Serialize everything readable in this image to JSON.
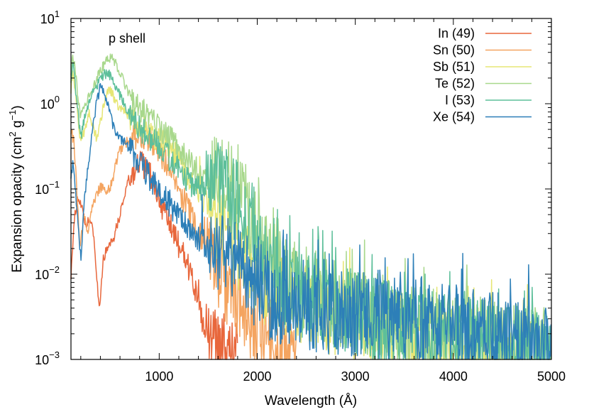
{
  "chart_data": {
    "type": "line",
    "annotation": "p shell",
    "xlabel": "Wavelength (Å)",
    "ylabel": {
      "prefix": "Expansion opacity (cm",
      "sup1": "2",
      "mid": " g",
      "sup2": "−1",
      "suffix": ")"
    },
    "xlim": [
      100,
      5000
    ],
    "ylim": [
      0.001,
      10
    ],
    "yscale": "log",
    "grid": false,
    "legend_position": "top-right",
    "x_ticks": [
      {
        "value": 1000,
        "label": "1000"
      },
      {
        "value": 2000,
        "label": "2000"
      },
      {
        "value": 3000,
        "label": "3000"
      },
      {
        "value": 4000,
        "label": "4000"
      },
      {
        "value": 5000,
        "label": "5000"
      }
    ],
    "y_ticks": [
      {
        "value": 10,
        "base": "10",
        "exp": "1"
      },
      {
        "value": 1,
        "base": "10",
        "exp": "0"
      },
      {
        "value": 0.1,
        "base": "10",
        "exp": "−1"
      },
      {
        "value": 0.01,
        "base": "10",
        "exp": "−2"
      },
      {
        "value": 0.001,
        "base": "10",
        "exp": "−3"
      }
    ],
    "series": [
      {
        "name": "In (49)",
        "color": "#e8673c",
        "points": [
          [
            100,
            0.01
          ],
          [
            130,
            0.04
          ],
          [
            170,
            0.08
          ],
          [
            210,
            0.06
          ],
          [
            250,
            0.035
          ],
          [
            290,
            0.045
          ],
          [
            330,
            0.03
          ],
          [
            360,
            0.01
          ],
          [
            390,
            0.004
          ],
          [
            430,
            0.015
          ],
          [
            480,
            0.022
          ],
          [
            540,
            0.028
          ],
          [
            600,
            0.05
          ],
          [
            650,
            0.09
          ],
          [
            700,
            0.14
          ],
          [
            760,
            0.18
          ],
          [
            820,
            0.2
          ],
          [
            880,
            0.17
          ],
          [
            940,
            0.12
          ],
          [
            1000,
            0.08
          ],
          [
            1060,
            0.05
          ],
          [
            1120,
            0.035
          ],
          [
            1180,
            0.025
          ],
          [
            1240,
            0.018
          ],
          [
            1300,
            0.012
          ],
          [
            1350,
            0.008
          ],
          [
            1400,
            0.004
          ],
          [
            1450,
            0.0025
          ],
          [
            1500,
            0.0018
          ],
          [
            1560,
            0.0014
          ],
          [
            1620,
            0.0012
          ],
          [
            1700,
            0.0011
          ],
          [
            1800,
            0.001
          ]
        ]
      },
      {
        "name": "Sn (50)",
        "color": "#f4a460",
        "points": [
          [
            100,
            0.5
          ],
          [
            130,
            0.35
          ],
          [
            160,
            0.1
          ],
          [
            190,
            0.02
          ],
          [
            230,
            0.05
          ],
          [
            270,
            0.03
          ],
          [
            310,
            0.06
          ],
          [
            350,
            0.08
          ],
          [
            390,
            0.1
          ],
          [
            430,
            0.11
          ],
          [
            470,
            0.09
          ],
          [
            520,
            0.12
          ],
          [
            560,
            0.2
          ],
          [
            600,
            0.28
          ],
          [
            650,
            0.34
          ],
          [
            700,
            0.38
          ],
          [
            760,
            0.42
          ],
          [
            820,
            0.44
          ],
          [
            880,
            0.4
          ],
          [
            940,
            0.34
          ],
          [
            1000,
            0.27
          ],
          [
            1080,
            0.2
          ],
          [
            1160,
            0.13
          ],
          [
            1240,
            0.08
          ],
          [
            1320,
            0.05
          ],
          [
            1400,
            0.032
          ],
          [
            1480,
            0.022
          ],
          [
            1560,
            0.015
          ],
          [
            1640,
            0.01
          ],
          [
            1720,
            0.007
          ],
          [
            1800,
            0.005
          ],
          [
            1900,
            0.0035
          ],
          [
            2000,
            0.0025
          ],
          [
            2100,
            0.0018
          ],
          [
            2200,
            0.0014
          ],
          [
            2300,
            0.0011
          ],
          [
            2400,
            0.001
          ]
        ]
      },
      {
        "name": "Sb (51)",
        "color": "#e6e675",
        "points": [
          [
            100,
            1.5
          ],
          [
            120,
            2.2
          ],
          [
            140,
            1.6
          ],
          [
            170,
            0.7
          ],
          [
            200,
            0.35
          ],
          [
            240,
            0.5
          ],
          [
            280,
            0.8
          ],
          [
            320,
            0.55
          ],
          [
            360,
            0.4
          ],
          [
            400,
            0.6
          ],
          [
            440,
            1.1
          ],
          [
            480,
            1.5
          ],
          [
            520,
            1.3
          ],
          [
            560,
            1.0
          ],
          [
            620,
            0.85
          ],
          [
            680,
            0.75
          ],
          [
            740,
            0.65
          ],
          [
            800,
            0.55
          ],
          [
            860,
            0.5
          ],
          [
            920,
            0.45
          ],
          [
            980,
            0.4
          ],
          [
            1060,
            0.33
          ],
          [
            1140,
            0.27
          ],
          [
            1220,
            0.2
          ],
          [
            1300,
            0.14
          ],
          [
            1380,
            0.1
          ],
          [
            1460,
            0.072
          ],
          [
            1540,
            0.052
          ],
          [
            1620,
            0.036
          ],
          [
            1700,
            0.026
          ],
          [
            1800,
            0.018
          ],
          [
            1900,
            0.013
          ],
          [
            2000,
            0.009
          ],
          [
            2200,
            0.0065
          ],
          [
            2400,
            0.005
          ],
          [
            2600,
            0.004
          ],
          [
            2800,
            0.0033
          ],
          [
            3000,
            0.0028
          ],
          [
            3200,
            0.0024
          ],
          [
            3400,
            0.0021
          ],
          [
            3600,
            0.0019
          ],
          [
            3800,
            0.0016
          ],
          [
            4000,
            0.0014
          ],
          [
            4200,
            0.0013
          ],
          [
            4400,
            0.0012
          ],
          [
            4600,
            0.0011
          ],
          [
            4800,
            0.001
          ]
        ]
      },
      {
        "name": "Te (52)",
        "color": "#a8d88c",
        "points": [
          [
            100,
            2.5
          ],
          [
            120,
            3.4
          ],
          [
            140,
            2.6
          ],
          [
            170,
            1.3
          ],
          [
            200,
            0.7
          ],
          [
            240,
            0.9
          ],
          [
            280,
            1.2
          ],
          [
            320,
            1.5
          ],
          [
            360,
            1.9
          ],
          [
            400,
            2.4
          ],
          [
            440,
            2.9
          ],
          [
            480,
            3.3
          ],
          [
            520,
            3.5
          ],
          [
            560,
            2.9
          ],
          [
            620,
            2.0
          ],
          [
            680,
            1.4
          ],
          [
            740,
            1.1
          ],
          [
            800,
            0.9
          ],
          [
            860,
            0.75
          ],
          [
            920,
            0.65
          ],
          [
            980,
            0.55
          ],
          [
            1060,
            0.45
          ],
          [
            1140,
            0.35
          ],
          [
            1220,
            0.27
          ],
          [
            1300,
            0.21
          ],
          [
            1380,
            0.17
          ],
          [
            1460,
            0.14
          ],
          [
            1540,
            0.13
          ],
          [
            1620,
            0.15
          ],
          [
            1700,
            0.13
          ],
          [
            1780,
            0.11
          ],
          [
            1860,
            0.07
          ],
          [
            1940,
            0.04
          ],
          [
            2020,
            0.024
          ],
          [
            2100,
            0.016
          ],
          [
            2200,
            0.011
          ],
          [
            2400,
            0.0075
          ],
          [
            2600,
            0.0055
          ],
          [
            2800,
            0.0045
          ],
          [
            3000,
            0.0038
          ],
          [
            3200,
            0.0033
          ],
          [
            3400,
            0.0029
          ],
          [
            3600,
            0.0026
          ],
          [
            3800,
            0.0023
          ],
          [
            4000,
            0.0021
          ],
          [
            4200,
            0.0019
          ],
          [
            4400,
            0.0017
          ],
          [
            4600,
            0.0015
          ],
          [
            4800,
            0.0013
          ],
          [
            5000,
            0.0012
          ]
        ]
      },
      {
        "name": "I  (53)",
        "color": "#5dbf9a",
        "points": [
          [
            100,
            2.0
          ],
          [
            120,
            2.8
          ],
          [
            140,
            1.8
          ],
          [
            170,
            0.8
          ],
          [
            200,
            0.4
          ],
          [
            240,
            0.7
          ],
          [
            280,
            1.0
          ],
          [
            320,
            1.3
          ],
          [
            360,
            1.6
          ],
          [
            400,
            1.9
          ],
          [
            440,
            2.2
          ],
          [
            480,
            2.3
          ],
          [
            520,
            2.0
          ],
          [
            560,
            1.6
          ],
          [
            620,
            1.1
          ],
          [
            680,
            0.8
          ],
          [
            740,
            0.6
          ],
          [
            800,
            0.5
          ],
          [
            860,
            0.45
          ],
          [
            920,
            0.4
          ],
          [
            980,
            0.33
          ],
          [
            1060,
            0.26
          ],
          [
            1140,
            0.2
          ],
          [
            1220,
            0.15
          ],
          [
            1300,
            0.12
          ],
          [
            1380,
            0.1
          ],
          [
            1460,
            0.095
          ],
          [
            1540,
            0.1
          ],
          [
            1620,
            0.11
          ],
          [
            1700,
            0.095
          ],
          [
            1780,
            0.075
          ],
          [
            1860,
            0.05
          ],
          [
            1940,
            0.03
          ],
          [
            2020,
            0.018
          ],
          [
            2100,
            0.012
          ],
          [
            2200,
            0.0085
          ],
          [
            2400,
            0.006
          ],
          [
            2600,
            0.0048
          ],
          [
            2800,
            0.004
          ],
          [
            3000,
            0.0035
          ],
          [
            3200,
            0.003
          ],
          [
            3400,
            0.0026
          ],
          [
            3600,
            0.0023
          ],
          [
            3800,
            0.0021
          ],
          [
            4000,
            0.0019
          ],
          [
            4200,
            0.0017
          ],
          [
            4400,
            0.0016
          ],
          [
            4600,
            0.0014
          ],
          [
            4800,
            0.0013
          ],
          [
            5000,
            0.0012
          ]
        ]
      },
      {
        "name": "Xe (54)",
        "color": "#2d7fb8",
        "points": [
          [
            100,
            0.15
          ],
          [
            120,
            0.2
          ],
          [
            140,
            0.12
          ],
          [
            170,
            0.04
          ],
          [
            200,
            0.015
          ],
          [
            240,
            0.08
          ],
          [
            280,
            0.2
          ],
          [
            320,
            0.5
          ],
          [
            360,
            1.0
          ],
          [
            400,
            1.6
          ],
          [
            440,
            1.3
          ],
          [
            480,
            0.9
          ],
          [
            520,
            0.6
          ],
          [
            560,
            0.45
          ],
          [
            620,
            0.38
          ],
          [
            680,
            0.32
          ],
          [
            740,
            0.26
          ],
          [
            800,
            0.2
          ],
          [
            860,
            0.16
          ],
          [
            920,
            0.13
          ],
          [
            980,
            0.1
          ],
          [
            1060,
            0.08
          ],
          [
            1140,
            0.06
          ],
          [
            1220,
            0.046
          ],
          [
            1300,
            0.036
          ],
          [
            1380,
            0.028
          ],
          [
            1460,
            0.023
          ],
          [
            1540,
            0.02
          ],
          [
            1620,
            0.019
          ],
          [
            1700,
            0.017
          ],
          [
            1780,
            0.014
          ],
          [
            1860,
            0.011
          ],
          [
            1940,
            0.0085
          ],
          [
            2020,
            0.0065
          ],
          [
            2100,
            0.0055
          ],
          [
            2200,
            0.0048
          ],
          [
            2400,
            0.0042
          ],
          [
            2600,
            0.0038
          ],
          [
            2800,
            0.0036
          ],
          [
            3000,
            0.0034
          ],
          [
            3200,
            0.0032
          ],
          [
            3400,
            0.003
          ],
          [
            3600,
            0.0028
          ],
          [
            3800,
            0.0026
          ],
          [
            4000,
            0.0024
          ],
          [
            4200,
            0.0022
          ],
          [
            4400,
            0.002
          ],
          [
            4600,
            0.0018
          ],
          [
            4800,
            0.0016
          ],
          [
            5000,
            0.0015
          ]
        ]
      }
    ]
  }
}
